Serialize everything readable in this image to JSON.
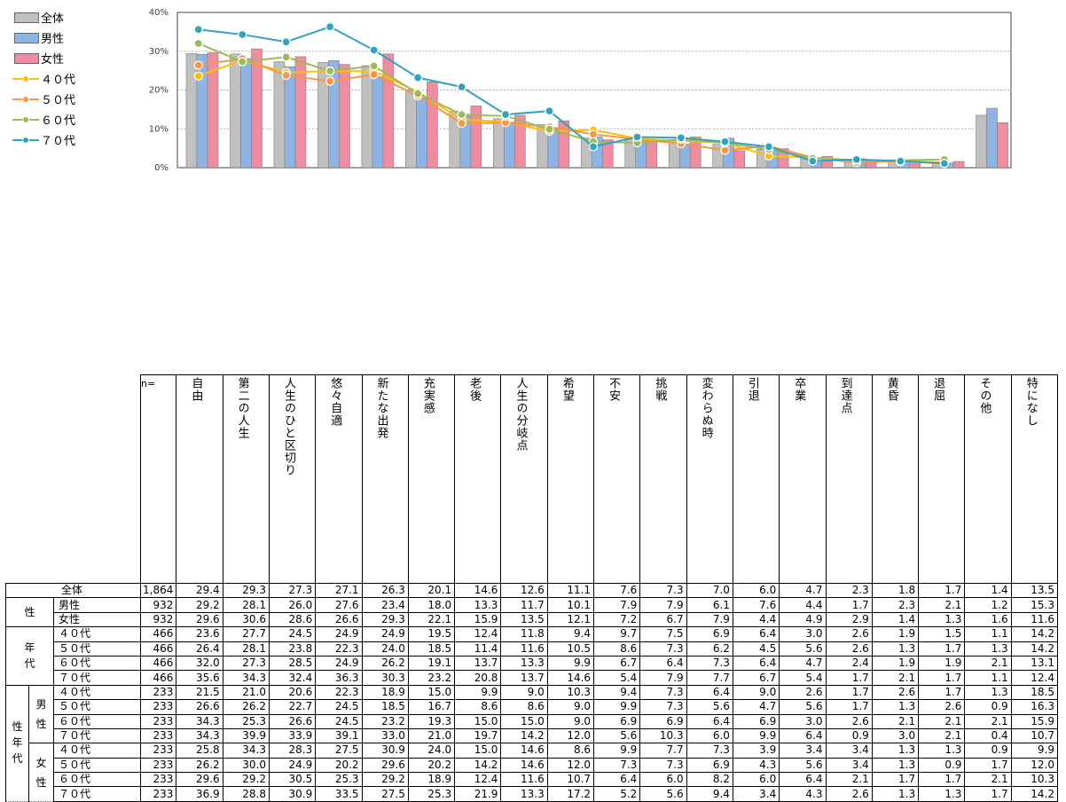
{
  "chart_data": {
    "type": "bar",
    "y_ticks": [
      "40%",
      "30%",
      "20%",
      "10%",
      "0%"
    ],
    "ylim": [
      0,
      40
    ],
    "grid": true,
    "legend_position": "top-left",
    "categories": [
      "自由",
      "第二の人生",
      "人生のひと区切り",
      "悠々自適",
      "新たな出発",
      "充実感",
      "老後",
      "人生の分岐点",
      "希望",
      "不安",
      "挑戦",
      "変わらぬ時",
      "引退",
      "卒業",
      "到達点",
      "黄昏",
      "退屈",
      "その他",
      "特になし"
    ],
    "bar_series": [
      {
        "name": "全体",
        "color": "#c0c0c0",
        "values": [
          29.4,
          29.3,
          27.3,
          27.1,
          26.3,
          20.1,
          14.6,
          12.6,
          11.1,
          7.6,
          7.3,
          7.0,
          6.0,
          4.7,
          2.3,
          1.8,
          1.7,
          1.4,
          13.5
        ]
      },
      {
        "name": "男性",
        "color": "#8db4e2",
        "values": [
          29.2,
          28.1,
          26.0,
          27.6,
          23.4,
          18.0,
          13.3,
          11.7,
          10.1,
          7.9,
          7.9,
          6.1,
          7.6,
          4.4,
          1.7,
          2.3,
          2.1,
          1.2,
          15.3
        ]
      },
      {
        "name": "女性",
        "color": "#f08ca0",
        "values": [
          29.6,
          30.6,
          28.6,
          26.6,
          29.3,
          22.1,
          15.9,
          13.5,
          12.1,
          7.2,
          6.7,
          7.9,
          4.4,
          4.9,
          2.9,
          1.4,
          1.3,
          1.6,
          11.6
        ]
      }
    ],
    "line_series": [
      {
        "name": "４０代",
        "color": "#ffc000",
        "values": [
          23.6,
          27.7,
          24.5,
          24.9,
          24.9,
          19.5,
          12.4,
          11.8,
          9.4,
          9.7,
          7.5,
          6.9,
          6.4,
          3.0,
          2.6,
          1.9,
          1.5,
          1.1,
          14.2
        ]
      },
      {
        "name": "５０代",
        "color": "#f79646",
        "values": [
          26.4,
          28.1,
          23.8,
          22.3,
          24.0,
          18.5,
          11.4,
          11.6,
          10.5,
          8.6,
          7.3,
          6.2,
          4.5,
          5.6,
          2.6,
          1.3,
          1.7,
          1.3,
          14.2
        ]
      },
      {
        "name": "６０代",
        "color": "#9bbb59",
        "values": [
          32.0,
          27.3,
          28.5,
          24.9,
          26.2,
          19.1,
          13.7,
          13.3,
          9.9,
          6.7,
          6.4,
          7.3,
          6.4,
          4.7,
          2.4,
          1.9,
          1.9,
          2.1,
          13.1
        ]
      },
      {
        "name": "７０代",
        "color": "#31a2bf",
        "values": [
          35.6,
          34.3,
          32.4,
          36.3,
          30.3,
          23.2,
          20.8,
          13.7,
          14.6,
          5.4,
          7.9,
          7.7,
          6.7,
          5.4,
          1.7,
          2.1,
          1.7,
          1.1,
          12.4
        ]
      }
    ]
  },
  "table": {
    "n_label": "n=",
    "rows": [
      {
        "group": "",
        "sub": "",
        "label": "全体",
        "n": "1,864",
        "values": [
          "29.4",
          "29.3",
          "27.3",
          "27.1",
          "26.3",
          "20.1",
          "14.6",
          "12.6",
          "11.1",
          "7.6",
          "7.3",
          "7.0",
          "6.0",
          "4.7",
          "2.3",
          "1.8",
          "1.7",
          "1.4",
          "13.5"
        ]
      },
      {
        "group": "性",
        "sub": "",
        "label": "男性",
        "n": "932",
        "values": [
          "29.2",
          "28.1",
          "26.0",
          "27.6",
          "23.4",
          "18.0",
          "13.3",
          "11.7",
          "10.1",
          "7.9",
          "7.9",
          "6.1",
          "7.6",
          "4.4",
          "1.7",
          "2.3",
          "2.1",
          "1.2",
          "15.3"
        ]
      },
      {
        "group": "",
        "sub": "",
        "label": "女性",
        "n": "932",
        "values": [
          "29.6",
          "30.6",
          "28.6",
          "26.6",
          "29.3",
          "22.1",
          "15.9",
          "13.5",
          "12.1",
          "7.2",
          "6.7",
          "7.9",
          "4.4",
          "4.9",
          "2.9",
          "1.4",
          "1.3",
          "1.6",
          "11.6"
        ]
      },
      {
        "group": "年代",
        "sub": "",
        "label": "４０代",
        "n": "466",
        "values": [
          "23.6",
          "27.7",
          "24.5",
          "24.9",
          "24.9",
          "19.5",
          "12.4",
          "11.8",
          "9.4",
          "9.7",
          "7.5",
          "6.9",
          "6.4",
          "3.0",
          "2.6",
          "1.9",
          "1.5",
          "1.1",
          "14.2"
        ]
      },
      {
        "group": "",
        "sub": "",
        "label": "５０代",
        "n": "466",
        "values": [
          "26.4",
          "28.1",
          "23.8",
          "22.3",
          "24.0",
          "18.5",
          "11.4",
          "11.6",
          "10.5",
          "8.6",
          "7.3",
          "6.2",
          "4.5",
          "5.6",
          "2.6",
          "1.3",
          "1.7",
          "1.3",
          "14.2"
        ]
      },
      {
        "group": "",
        "sub": "",
        "label": "６０代",
        "n": "466",
        "values": [
          "32.0",
          "27.3",
          "28.5",
          "24.9",
          "26.2",
          "19.1",
          "13.7",
          "13.3",
          "9.9",
          "6.7",
          "6.4",
          "7.3",
          "6.4",
          "4.7",
          "2.4",
          "1.9",
          "1.9",
          "2.1",
          "13.1"
        ]
      },
      {
        "group": "",
        "sub": "",
        "label": "７０代",
        "n": "466",
        "values": [
          "35.6",
          "34.3",
          "32.4",
          "36.3",
          "30.3",
          "23.2",
          "20.8",
          "13.7",
          "14.6",
          "5.4",
          "7.9",
          "7.7",
          "6.7",
          "5.4",
          "1.7",
          "2.1",
          "1.7",
          "1.1",
          "12.4"
        ]
      },
      {
        "group": "性年代",
        "sub": "男性",
        "label": "４０代",
        "n": "233",
        "values": [
          "21.5",
          "21.0",
          "20.6",
          "22.3",
          "18.9",
          "15.0",
          "9.9",
          "9.0",
          "10.3",
          "9.4",
          "7.3",
          "6.4",
          "9.0",
          "2.6",
          "1.7",
          "2.6",
          "1.7",
          "1.3",
          "18.5"
        ]
      },
      {
        "group": "",
        "sub": "",
        "label": "５０代",
        "n": "233",
        "values": [
          "26.6",
          "26.2",
          "22.7",
          "24.5",
          "18.5",
          "16.7",
          "8.6",
          "8.6",
          "9.0",
          "9.9",
          "7.3",
          "5.6",
          "4.7",
          "5.6",
          "1.7",
          "1.3",
          "2.6",
          "0.9",
          "16.3"
        ]
      },
      {
        "group": "",
        "sub": "",
        "label": "６０代",
        "n": "233",
        "values": [
          "34.3",
          "25.3",
          "26.6",
          "24.5",
          "23.2",
          "19.3",
          "15.0",
          "15.0",
          "9.0",
          "6.9",
          "6.9",
          "6.4",
          "6.9",
          "3.0",
          "2.6",
          "2.1",
          "2.1",
          "2.1",
          "15.9"
        ]
      },
      {
        "group": "",
        "sub": "",
        "label": "７０代",
        "n": "233",
        "values": [
          "34.3",
          "39.9",
          "33.9",
          "39.1",
          "33.0",
          "21.0",
          "19.7",
          "14.2",
          "12.0",
          "5.6",
          "10.3",
          "6.0",
          "9.9",
          "6.4",
          "0.9",
          "3.0",
          "2.1",
          "0.4",
          "10.7"
        ]
      },
      {
        "group": "",
        "sub": "女性",
        "label": "４０代",
        "n": "233",
        "values": [
          "25.8",
          "34.3",
          "28.3",
          "27.5",
          "30.9",
          "24.0",
          "15.0",
          "14.6",
          "8.6",
          "9.9",
          "7.7",
          "7.3",
          "3.9",
          "3.4",
          "3.4",
          "1.3",
          "1.3",
          "0.9",
          "9.9"
        ]
      },
      {
        "group": "",
        "sub": "",
        "label": "５０代",
        "n": "233",
        "values": [
          "26.2",
          "30.0",
          "24.9",
          "20.2",
          "29.6",
          "20.2",
          "14.2",
          "14.6",
          "12.0",
          "7.3",
          "7.3",
          "6.9",
          "4.3",
          "5.6",
          "3.4",
          "1.3",
          "0.9",
          "1.7",
          "12.0"
        ]
      },
      {
        "group": "",
        "sub": "",
        "label": "６０代",
        "n": "233",
        "values": [
          "29.6",
          "29.2",
          "30.5",
          "25.3",
          "29.2",
          "18.9",
          "12.4",
          "11.6",
          "10.7",
          "6.4",
          "6.0",
          "8.2",
          "6.0",
          "6.4",
          "2.1",
          "1.7",
          "1.7",
          "2.1",
          "10.3"
        ]
      },
      {
        "group": "",
        "sub": "",
        "label": "７０代",
        "n": "233",
        "values": [
          "36.9",
          "28.8",
          "30.9",
          "33.5",
          "27.5",
          "25.3",
          "21.9",
          "13.3",
          "17.2",
          "5.2",
          "5.6",
          "9.4",
          "3.4",
          "4.3",
          "2.6",
          "1.3",
          "1.3",
          "1.7",
          "14.2"
        ]
      }
    ]
  }
}
